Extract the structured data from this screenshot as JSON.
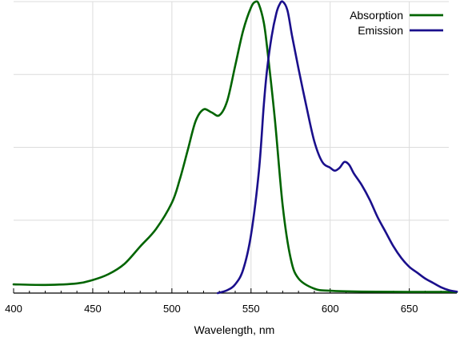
{
  "chart_data": {
    "type": "line",
    "title": "",
    "xlabel": "Wavelength, nm",
    "ylabel": "",
    "xlim": [
      400,
      680
    ],
    "ylim": [
      0,
      1.0
    ],
    "x_ticks": [
      400,
      450,
      500,
      550,
      600,
      650
    ],
    "y_gridlines": [
      0.25,
      0.5,
      0.75,
      1.0
    ],
    "x_gridlines": [
      450,
      500,
      550,
      600,
      650
    ],
    "grid": true,
    "legend_position": "top-right",
    "series": [
      {
        "name": "Absorption",
        "color": "#006400",
        "x": [
          400,
          420,
          440,
          450,
          460,
          470,
          480,
          490,
          500,
          505,
          510,
          515,
          520,
          525,
          530,
          535,
          540,
          545,
          550,
          553,
          555,
          558,
          560,
          565,
          570,
          575,
          580,
          590,
          600,
          620,
          650,
          680
        ],
        "y": [
          0.03,
          0.028,
          0.033,
          0.045,
          0.065,
          0.1,
          0.16,
          0.22,
          0.31,
          0.39,
          0.49,
          0.59,
          0.63,
          0.62,
          0.61,
          0.66,
          0.78,
          0.9,
          0.98,
          1.0,
          0.99,
          0.93,
          0.85,
          0.6,
          0.3,
          0.12,
          0.05,
          0.015,
          0.008,
          0.005,
          0.004,
          0.004
        ]
      },
      {
        "name": "Emission",
        "color": "#1a0f8c",
        "x": [
          529,
          535,
          540,
          545,
          550,
          555,
          558,
          560,
          563,
          566,
          568,
          570,
          573,
          576,
          580,
          585,
          590,
          595,
          600,
          603,
          606,
          609,
          612,
          615,
          620,
          625,
          630,
          635,
          640,
          645,
          650,
          655,
          660,
          665,
          670,
          675,
          680
        ],
        "y": [
          0.0,
          0.01,
          0.03,
          0.08,
          0.2,
          0.42,
          0.64,
          0.76,
          0.88,
          0.96,
          0.99,
          1.0,
          0.97,
          0.88,
          0.77,
          0.64,
          0.52,
          0.45,
          0.43,
          0.42,
          0.43,
          0.45,
          0.44,
          0.41,
          0.37,
          0.32,
          0.26,
          0.21,
          0.16,
          0.12,
          0.09,
          0.07,
          0.05,
          0.035,
          0.02,
          0.01,
          0.005
        ]
      }
    ]
  }
}
